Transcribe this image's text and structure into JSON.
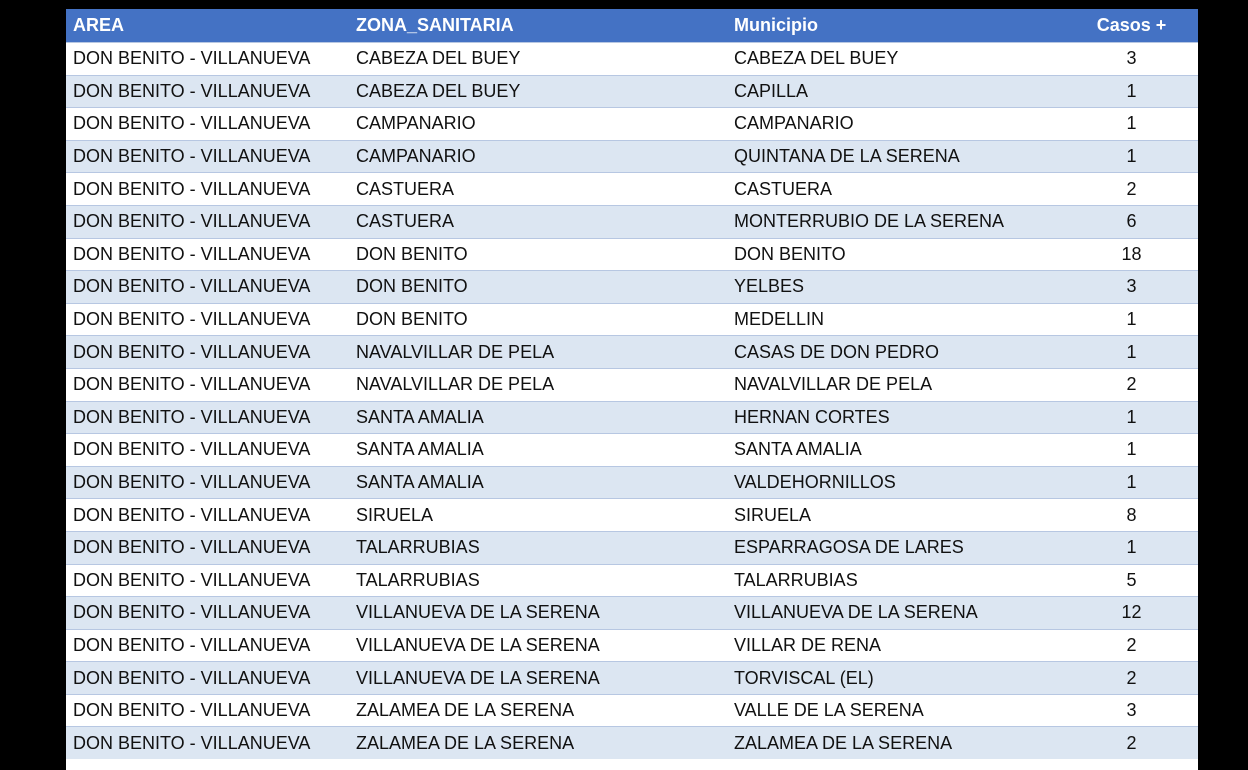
{
  "table": {
    "headers": [
      "AREA",
      "ZONA_SANITARIA",
      "Municipio",
      "Casos +"
    ],
    "rows": [
      [
        "DON BENITO - VILLANUEVA",
        "CABEZA DEL BUEY",
        "CABEZA DEL BUEY",
        "3"
      ],
      [
        "DON BENITO - VILLANUEVA",
        "CABEZA DEL BUEY",
        "CAPILLA",
        "1"
      ],
      [
        "DON BENITO - VILLANUEVA",
        "CAMPANARIO",
        "CAMPANARIO",
        "1"
      ],
      [
        "DON BENITO - VILLANUEVA",
        "CAMPANARIO",
        "QUINTANA DE LA SERENA",
        "1"
      ],
      [
        "DON BENITO - VILLANUEVA",
        "CASTUERA",
        "CASTUERA",
        "2"
      ],
      [
        "DON BENITO - VILLANUEVA",
        "CASTUERA",
        "MONTERRUBIO DE LA SERENA",
        "6"
      ],
      [
        "DON BENITO - VILLANUEVA",
        "DON BENITO",
        "DON BENITO",
        "18"
      ],
      [
        "DON BENITO - VILLANUEVA",
        "DON BENITO",
        "YELBES",
        "3"
      ],
      [
        "DON BENITO - VILLANUEVA",
        "DON BENITO",
        "MEDELLIN",
        "1"
      ],
      [
        "DON BENITO - VILLANUEVA",
        "NAVALVILLAR DE PELA",
        "CASAS DE DON PEDRO",
        "1"
      ],
      [
        "DON BENITO - VILLANUEVA",
        "NAVALVILLAR DE PELA",
        "NAVALVILLAR DE PELA",
        "2"
      ],
      [
        "DON BENITO - VILLANUEVA",
        "SANTA AMALIA",
        "HERNAN CORTES",
        "1"
      ],
      [
        "DON BENITO - VILLANUEVA",
        "SANTA AMALIA",
        "SANTA AMALIA",
        "1"
      ],
      [
        "DON BENITO - VILLANUEVA",
        "SANTA AMALIA",
        "VALDEHORNILLOS",
        "1"
      ],
      [
        "DON BENITO - VILLANUEVA",
        "SIRUELA",
        "SIRUELA",
        "8"
      ],
      [
        "DON BENITO - VILLANUEVA",
        "TALARRUBIAS",
        "ESPARRAGOSA DE LARES",
        "1"
      ],
      [
        "DON BENITO - VILLANUEVA",
        "TALARRUBIAS",
        "TALARRUBIAS",
        "5"
      ],
      [
        "DON BENITO - VILLANUEVA",
        "VILLANUEVA DE LA SERENA",
        "VILLANUEVA DE LA SERENA",
        "12"
      ],
      [
        "DON BENITO - VILLANUEVA",
        "VILLANUEVA DE LA SERENA",
        "VILLAR DE RENA",
        "2"
      ],
      [
        "DON BENITO - VILLANUEVA",
        "VILLANUEVA DE LA SERENA",
        "TORVISCAL (EL)",
        "2"
      ],
      [
        "DON BENITO - VILLANUEVA",
        "ZALAMEA DE LA SERENA",
        "VALLE DE LA SERENA",
        "3"
      ],
      [
        "DON BENITO - VILLANUEVA",
        "ZALAMEA DE LA SERENA",
        "ZALAMEA DE LA SERENA",
        "2"
      ]
    ]
  },
  "colors": {
    "header_bg": "#4472c4",
    "header_text": "#ffffff",
    "band_row": "#dce6f2",
    "plain_row": "#ffffff"
  }
}
